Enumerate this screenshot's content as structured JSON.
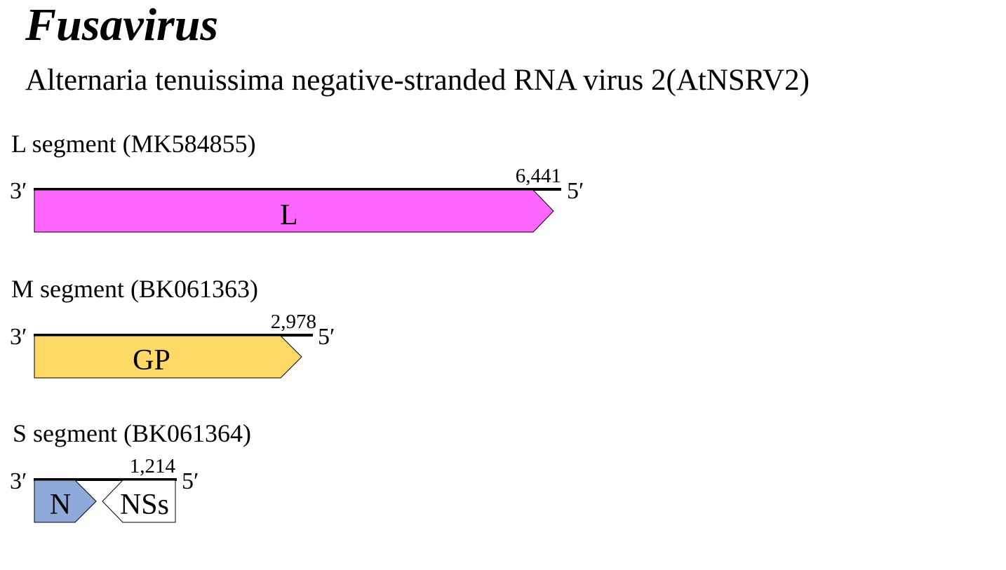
{
  "genus": "Fusavirus",
  "virus_name": "Alternaria tenuissima negative-stranded RNA virus 2(AtNSRV2)",
  "colors": {
    "line": "#000000",
    "L": "#ff66ff",
    "GP": "#ffd966",
    "N": "#8eaadb",
    "NSs": "#ffffff"
  },
  "segments": [
    {
      "id": "L",
      "label": "L segment (MK584855)",
      "length": 6441,
      "length_label": "6,441",
      "end_3": "3′",
      "end_5": "5′",
      "orfs": [
        {
          "name": "L",
          "strand": "forward",
          "color": "#ff66ff"
        }
      ]
    },
    {
      "id": "M",
      "label": "M segment (BK061363)",
      "length": 2978,
      "length_label": "2,978",
      "end_3": "3′",
      "end_5": "5′",
      "orfs": [
        {
          "name": "GP",
          "strand": "forward",
          "color": "#ffd966"
        }
      ]
    },
    {
      "id": "S",
      "label": "S segment (BK061364)",
      "length": 1214,
      "length_label": "1,214",
      "end_3": "3′",
      "end_5": "5′",
      "orfs": [
        {
          "name": "N",
          "strand": "forward",
          "color": "#8eaadb"
        },
        {
          "name": "NSs",
          "strand": "reverse",
          "color": "#ffffff"
        }
      ]
    }
  ]
}
